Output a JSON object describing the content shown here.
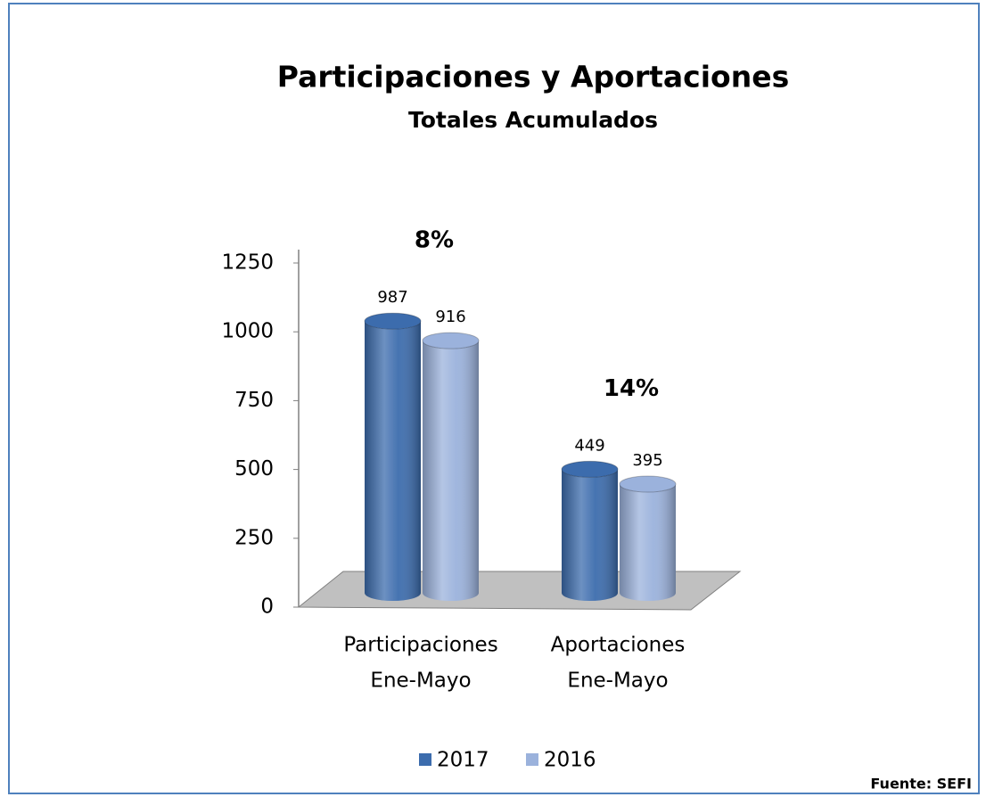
{
  "chart_data": {
    "type": "bar3d",
    "title": "Participaciones y Aportaciones",
    "subtitle": "Totales Acumulados",
    "categories": [
      [
        "Participaciones",
        "Ene-Mayo"
      ],
      [
        "Aportaciones",
        "Ene-Mayo"
      ]
    ],
    "series": [
      {
        "name": "2017",
        "color": "#3c6cad",
        "values": [
          987,
          449
        ]
      },
      {
        "name": "2016",
        "color": "#9bb2dc",
        "values": [
          916,
          395
        ]
      }
    ],
    "annotations": [
      "8%",
      "14%"
    ],
    "ylim": [
      0,
      1250
    ],
    "yticks": [
      0,
      250,
      500,
      750,
      1000,
      1250
    ],
    "source": "Fuente: SEFI"
  }
}
